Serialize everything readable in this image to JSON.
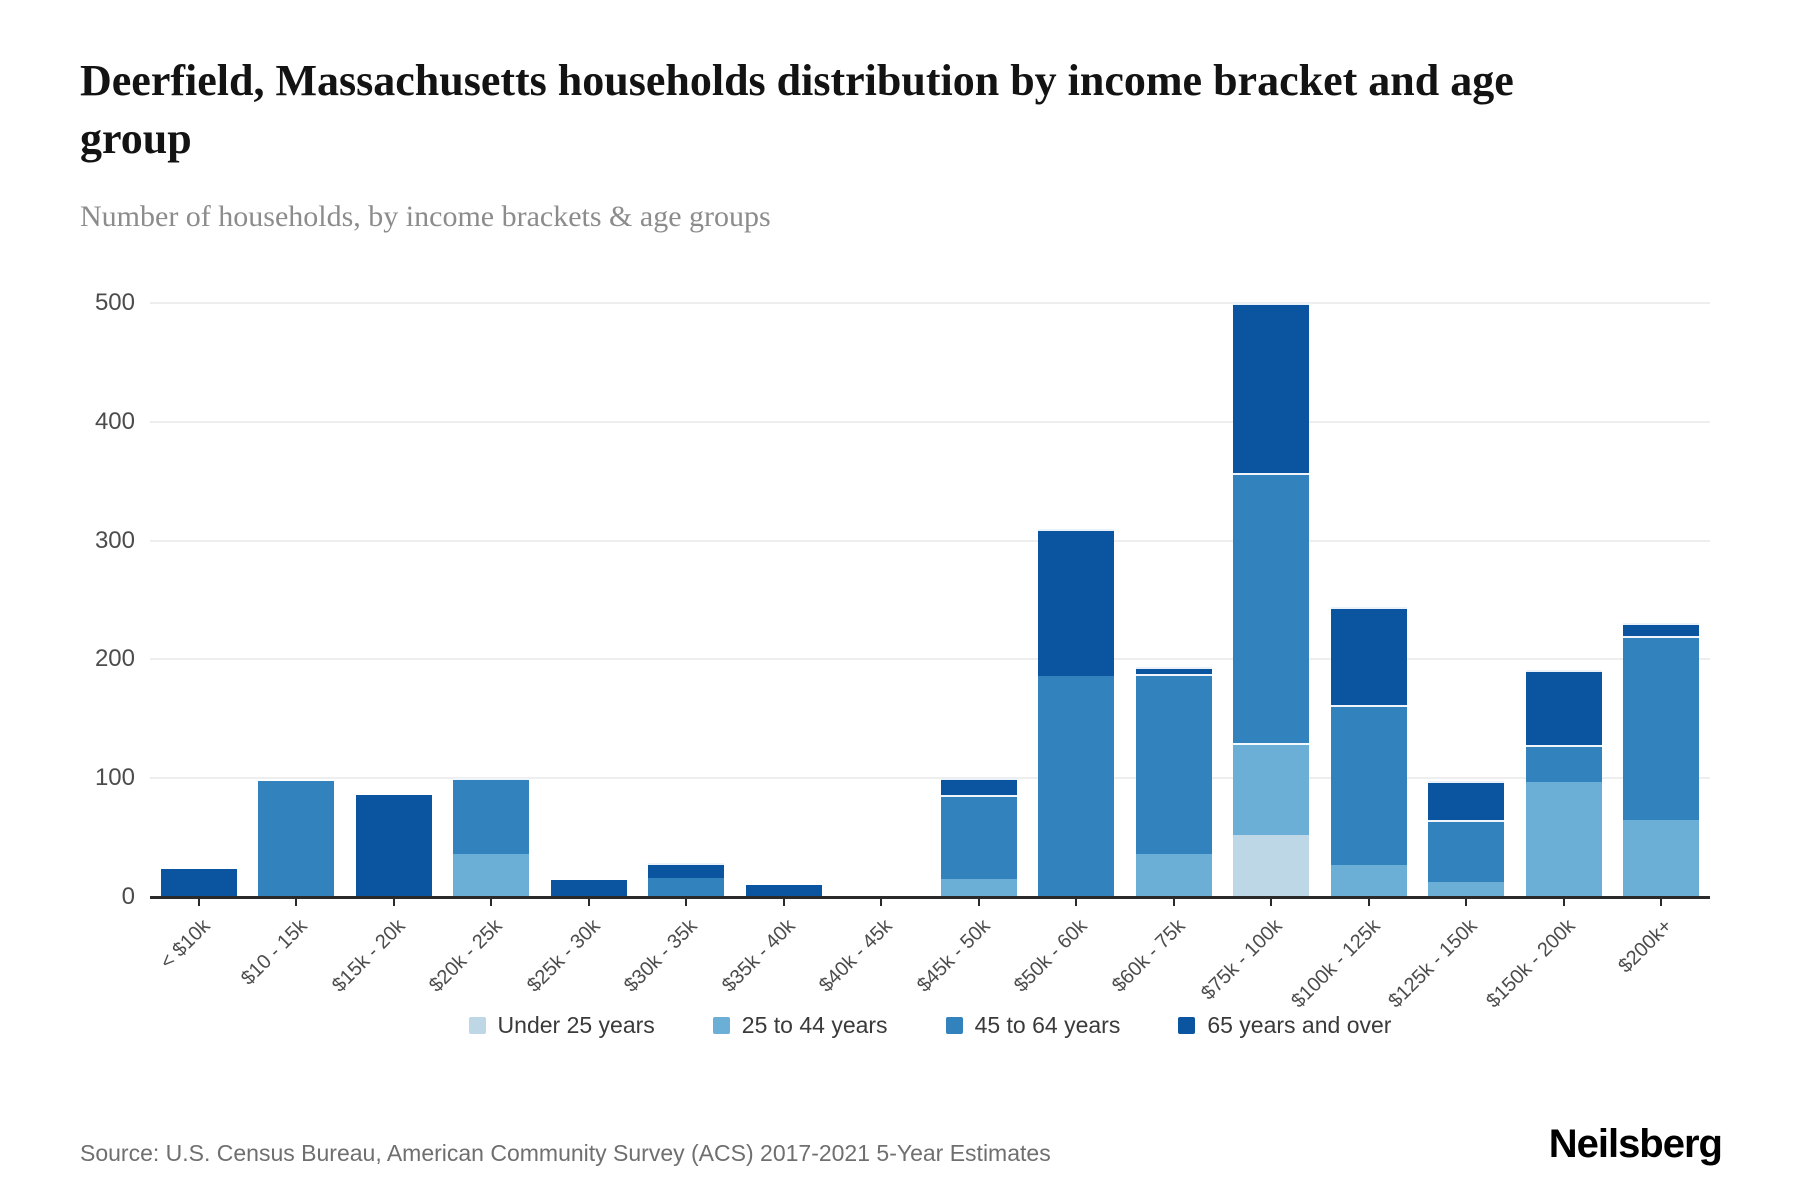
{
  "header": {
    "title": "Deerfield, Massachusetts households distribution by income bracket and age group",
    "subtitle": "Number of households, by income brackets & age groups"
  },
  "footer": {
    "source": "Source: U.S. Census Bureau, American Community Survey (ACS) 2017-2021 5-Year Estimates",
    "brand": "Neilsberg"
  },
  "colors": {
    "under_25": "#bdd7e7",
    "age_25_44": "#6baed6",
    "age_45_64": "#3182bd",
    "age_65_over": "#0b55a0",
    "gridline": "#eeeeee",
    "axis": "#2a2a2a",
    "tick_label": "#4c4c4c"
  },
  "chart_data": {
    "type": "bar",
    "stacked": true,
    "title": "Deerfield, Massachusetts households distribution by income bracket and age group",
    "xlabel": "",
    "ylabel": "Number of households",
    "ylim": [
      0,
      500
    ],
    "yticks": [
      0,
      100,
      200,
      300,
      400,
      500
    ],
    "grid": "horizontal",
    "legend_position": "bottom",
    "categories": [
      "< $10k",
      "$10 - 15k",
      "$15k - 20k",
      "$20k - 25k",
      "$25k - 30k",
      "$30k - 35k",
      "$35k - 40k",
      "$40k - 45k",
      "$45k - 50k",
      "$50k - 60k",
      "$60k - 75k",
      "$75k - 100k",
      "$100k - 125k",
      "$125k - 150k",
      "$150k - 200k",
      "$200k+"
    ],
    "series": [
      {
        "name": "Under 25 years",
        "color": "#bdd7e7",
        "values": [
          0,
          0,
          0,
          0,
          0,
          0,
          0,
          0,
          0,
          0,
          0,
          52,
          0,
          0,
          0,
          0
        ]
      },
      {
        "name": "25 to 44 years",
        "color": "#6baed6",
        "values": [
          0,
          0,
          0,
          36,
          0,
          0,
          0,
          0,
          15,
          0,
          36,
          78,
          27,
          13,
          97,
          65
        ]
      },
      {
        "name": "45 to 64 years",
        "color": "#3182bd",
        "values": [
          0,
          98,
          0,
          64,
          0,
          16,
          0,
          0,
          71,
          186,
          152,
          227,
          135,
          52,
          31,
          155
        ]
      },
      {
        "name": "65 years and over",
        "color": "#0b55a0",
        "values": [
          24,
          0,
          86,
          0,
          14,
          13,
          10,
          0,
          14,
          124,
          6,
          143,
          82,
          33,
          63,
          11
        ]
      }
    ]
  }
}
